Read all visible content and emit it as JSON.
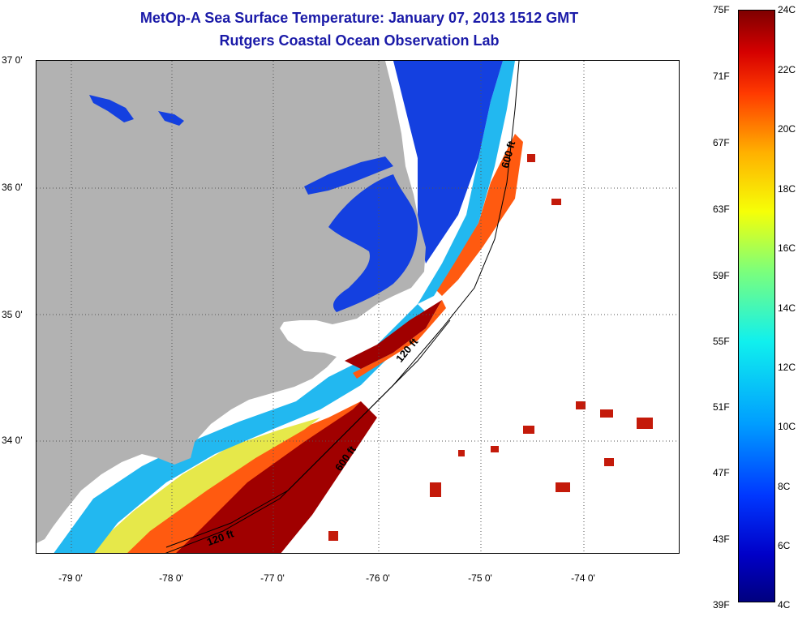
{
  "title": {
    "line1": "MetOp-A Sea Surface Temperature:  January 07, 2013 1512 GMT",
    "line2": "Rutgers Coastal Ocean Observation Lab"
  },
  "map": {
    "latitudes": [
      "37 0'",
      "36 0'",
      "35 0'",
      "34 0'"
    ],
    "longitudes": [
      "-79 0'",
      "-78 0'",
      "-77 0'",
      "-76 0'",
      "-75 0'",
      "-74 0'"
    ],
    "contours": [
      "600 ft",
      "120 ft",
      "600 ft",
      "120 ft"
    ],
    "colors": {
      "land": "#b2b2b2",
      "cold": "#1440e0",
      "cool": "#22b8f0",
      "mild": "#e6e84a",
      "warm": "#ff5a10",
      "hot": "#a00000"
    }
  },
  "colorbar": {
    "fahrenheit": [
      "75F",
      "71F",
      "67F",
      "63F",
      "59F",
      "55F",
      "51F",
      "47F",
      "43F",
      "39F"
    ],
    "celsius": [
      "24C",
      "22C",
      "20C",
      "18C",
      "16C",
      "14C",
      "12C",
      "10C",
      "8C",
      "6C",
      "4C"
    ],
    "range_f": [
      39,
      75
    ],
    "range_c": [
      4,
      24
    ]
  }
}
